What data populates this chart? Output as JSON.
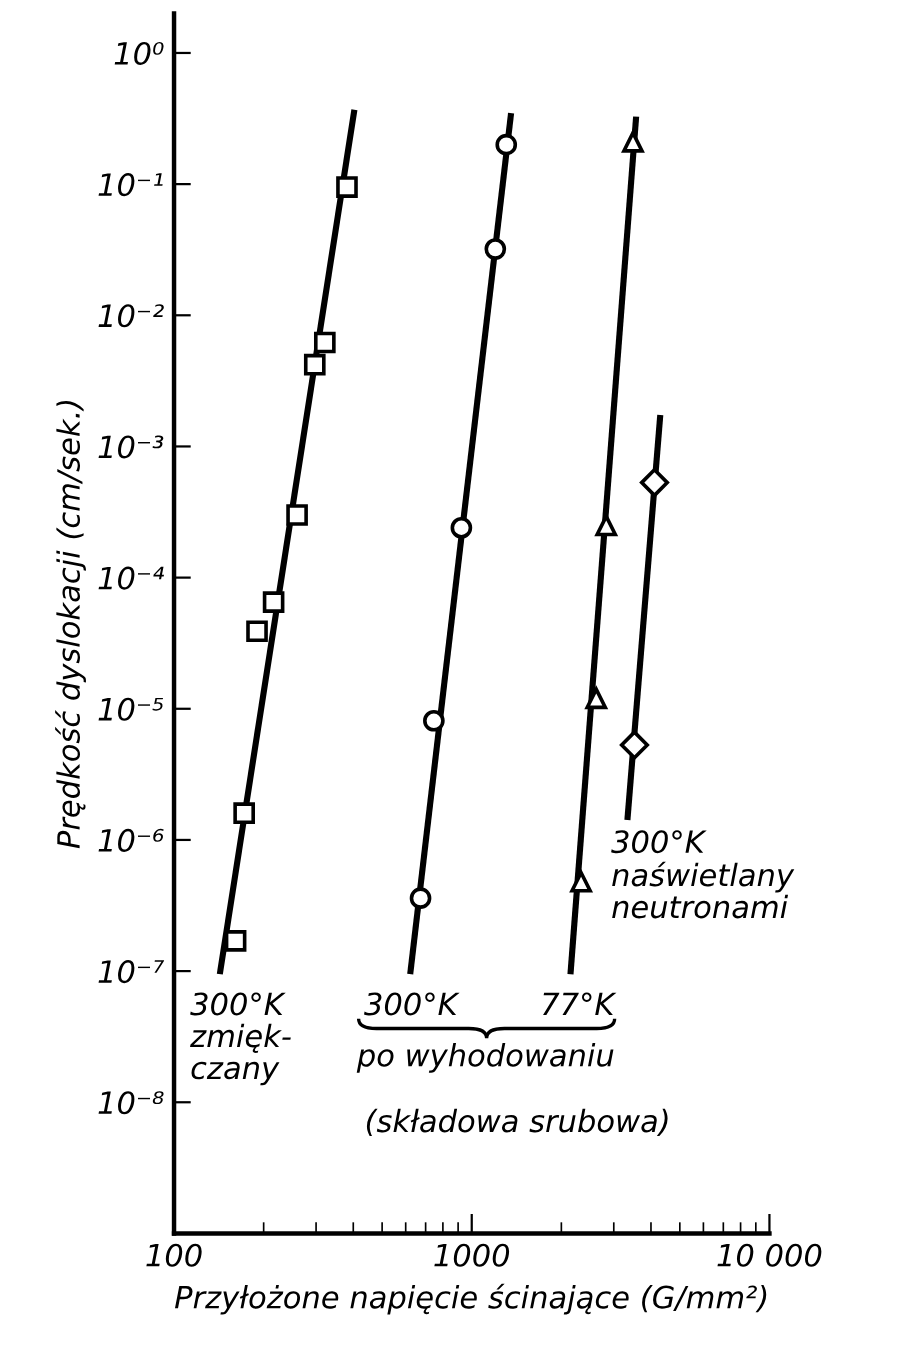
{
  "chart_data": {
    "type": "scatter",
    "log": "xy",
    "xlabel": "Przyłożone napięcie ścinające (G/mm²)",
    "ylabel": "Prędkość dyslokacji (cm/sek.)",
    "xlim": [
      100,
      10000
    ],
    "ylim": [
      1e-09,
      2
    ],
    "xticks": [
      100,
      1000,
      {
        "value": 10000,
        "label": "10 000"
      }
    ],
    "yticks": [
      {
        "value": 1e-08,
        "label": "10⁻⁸"
      },
      {
        "value": 1e-07,
        "label": "10⁻⁷"
      },
      {
        "value": 1e-06,
        "label": "10⁻⁶"
      },
      {
        "value": 1e-05,
        "label": "10⁻⁵"
      },
      {
        "value": 0.0001,
        "label": "10⁻⁴"
      },
      {
        "value": 0.001,
        "label": "10⁻³"
      },
      {
        "value": 0.01,
        "label": "10⁻²"
      },
      {
        "value": 0.1,
        "label": "10⁻¹"
      },
      {
        "value": 1,
        "label": "10⁰"
      }
    ],
    "grid": false,
    "series": [
      {
        "marker": "square",
        "color": "#000000",
        "x": [
          381,
          321,
          297,
          259,
          216,
          190,
          172,
          161
        ],
        "values": [
          0.095,
          0.0062,
          0.0042,
          0.0003,
          6.5e-05,
          3.9e-05,
          1.6e-06,
          1.7e-07
        ]
      },
      {
        "type": "line",
        "color": "#000000",
        "x": [
          143,
          402
        ],
        "values": [
          1e-07,
          0.35
        ]
      },
      {
        "marker": "circle",
        "color": "#000000",
        "x": [
          1306,
          1200,
          923,
          746,
          673
        ],
        "values": [
          0.2,
          0.032,
          0.00024,
          8.1e-06,
          3.6e-07
        ]
      },
      {
        "type": "line",
        "color": "#000000",
        "x": [
          623,
          1352
        ],
        "values": [
          1e-07,
          0.33
        ]
      },
      {
        "marker": "triangle",
        "color": "#000000",
        "x": [
          3480,
          2830,
          2620,
          2330
        ],
        "values": [
          0.21,
          0.00025,
          1.2e-05,
          4.8e-07
        ]
      },
      {
        "type": "line",
        "color": "#000000",
        "x": [
          2150,
          3560
        ],
        "values": [
          1e-07,
          0.31
        ]
      },
      {
        "marker": "diamond",
        "color": "#000000",
        "x": [
          4110,
          3520
        ],
        "values": [
          0.00053,
          5.3e-06
        ]
      },
      {
        "type": "line",
        "color": "#000000",
        "x": [
          3340,
          4290
        ],
        "values": [
          1.5e-06,
          0.00165
        ]
      }
    ],
    "annotations": [
      "300°K\nzmięk-\nczany",
      "300°K",
      "77°K",
      "po wyhodowaniu",
      "300°K\nnaświetlany\nneutronami",
      "(składowa srubowa)"
    ]
  }
}
